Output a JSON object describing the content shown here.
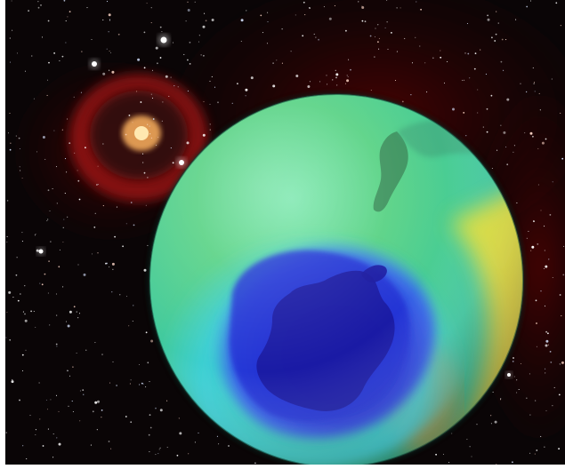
{
  "image": {
    "subject": "ozone-hole-globe",
    "colors": {
      "space": "#0a0506",
      "nebula": "#8a1410",
      "globe_green": "#5fd46a",
      "globe_cyan": "#34c8d8",
      "hole_blue": "#2a3ee0",
      "hole_deep": "#1a1aa8",
      "ring_yellow": "#f2e23a",
      "ring_orange": "#e88a2a",
      "land": "#3a8a58",
      "core": "#f0a85a"
    }
  }
}
